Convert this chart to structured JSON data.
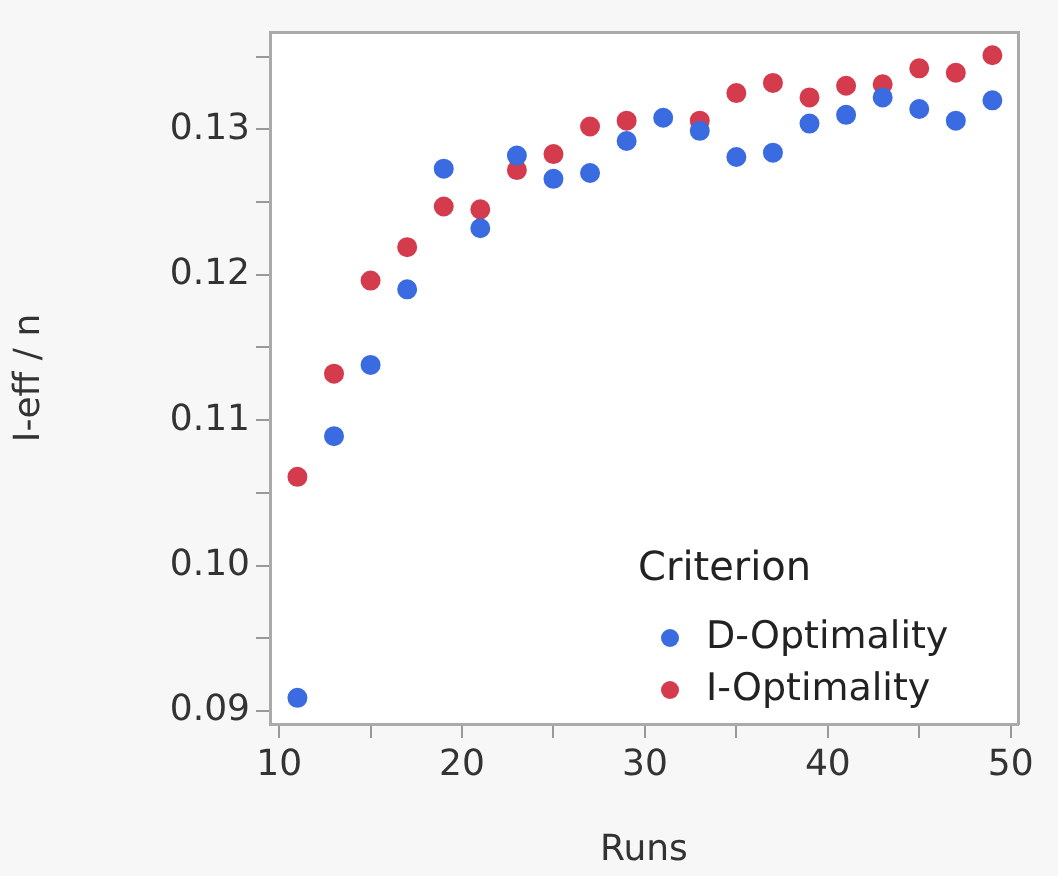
{
  "chart_data": {
    "type": "scatter",
    "xlabel": "Runs",
    "ylabel": "I-eff / n",
    "legend_title": "Criterion",
    "legend": "bottom right",
    "marker": "circle",
    "grid": false,
    "x": [
      11,
      13,
      15,
      17,
      19,
      21,
      23,
      25,
      27,
      29,
      31,
      33,
      35,
      37,
      39,
      41,
      43,
      45,
      47,
      49
    ],
    "series": [
      {
        "name": "D-Optimality",
        "color": "#3a6be0",
        "values": [
          0.0909,
          0.1089,
          0.1138,
          0.119,
          0.1273,
          0.1232,
          0.1282,
          0.1266,
          0.127,
          0.1292,
          0.1308,
          0.1299,
          0.1281,
          0.1284,
          0.1304,
          0.131,
          0.1322,
          0.1314,
          0.1306,
          0.132
        ]
      },
      {
        "name": "I-Optimality",
        "color": "#d43b4c",
        "values": [
          0.1061,
          0.1132,
          0.1196,
          0.1219,
          0.1247,
          0.1245,
          0.1272,
          0.1283,
          0.1302,
          0.1306,
          null,
          0.1306,
          0.1325,
          0.1332,
          0.1322,
          0.133,
          0.1331,
          0.1342,
          0.1339,
          0.1351
        ]
      }
    ],
    "xlim": [
      9.5,
      50.4
    ],
    "ylim": [
      0.0891,
      0.1367
    ],
    "xticks": [
      10,
      {
        "value": 15,
        "label": null
      },
      20,
      {
        "value": 25,
        "label": null
      },
      30,
      {
        "value": 35,
        "label": null
      },
      40,
      {
        "value": 45,
        "label": null
      },
      50
    ],
    "yticks": [
      {
        "value": 0.09,
        "label": "0.09"
      },
      {
        "value": 0.095,
        "label": null
      },
      {
        "value": 0.1,
        "label": "0.10"
      },
      {
        "value": 0.105,
        "label": null
      },
      {
        "value": 0.11,
        "label": "0.11"
      },
      {
        "value": 0.115,
        "label": null
      },
      {
        "value": 0.12,
        "label": "0.12"
      },
      {
        "value": 0.125,
        "label": null
      },
      {
        "value": 0.13,
        "label": "0.13"
      },
      {
        "value": 0.135,
        "label": null
      }
    ]
  }
}
